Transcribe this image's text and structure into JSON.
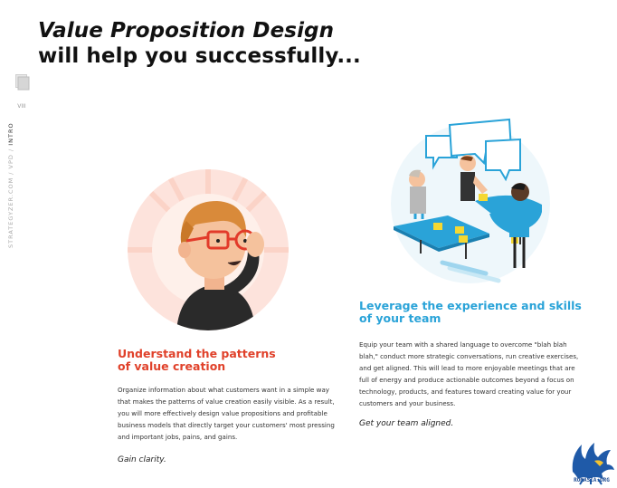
{
  "title": {
    "line1": "Value Proposition Design",
    "line2": "will help you successfully..."
  },
  "sidebar": {
    "page_number": "VIII",
    "path": "STRATEGYZER.COM / VPD / ",
    "section": "INTRO"
  },
  "sections": [
    {
      "heading_line1": "Understand the patterns",
      "heading_line2": "of value creation",
      "body": "Organize information about what customers want in a simple way that makes the patterns of value creation easily visible. As a result, you will more effectively design value propositions and profitable business models that directly target your customers' most pressing and important jobs, pains, and gains.",
      "tagline": "Gain clarity.",
      "accent": "#e0412a"
    },
    {
      "heading_line1": "Leverage the experience and skills",
      "heading_line2": "of your team",
      "body": "Equip your team with a shared language to overcome \"blah blah blah,\" conduct more strategic conversations, run creative exercises, and get aligned. This will lead to more enjoyable meetings that are full of energy and produce actionable outcomes beyond a focus on technology, products, and features toward creating value for your customers and your business.",
      "tagline": "Get your team aligned.",
      "accent": "#2aa3d8"
    }
  ],
  "watermark": {
    "text": "ROMASIA.ORG",
    "icon": "eagle-logo"
  }
}
